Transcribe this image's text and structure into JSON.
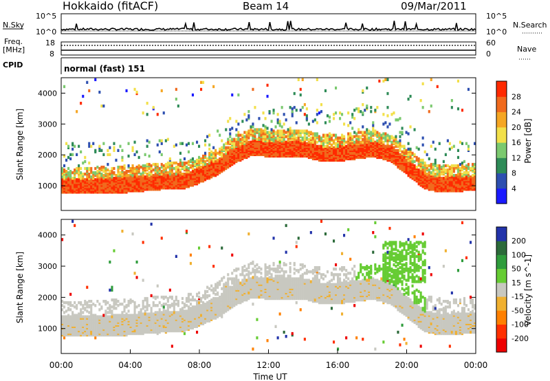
{
  "header": {
    "title": "Hokkaido (fitACF)",
    "beam": "Beam 14",
    "date": "09/Mar/2011"
  },
  "strips": {
    "nsky_label": "N.Sky",
    "nsky_hi": "10^5",
    "nsky_lo": "10^0",
    "nsearch_label": "N.Search",
    "nsearch_hi": "10^5",
    "nsearch_lo": "10^0",
    "freq_label": "Freq.",
    "freq_unit": "[MHz]",
    "freq_hi": "18",
    "freq_lo": "8",
    "nave_label": "Nave",
    "nave_hi": "60",
    "nave_lo": "0",
    "cpid_label": "CPID",
    "cpid_value": "normal (fast) 151"
  },
  "chart_data": [
    {
      "type": "heatmap",
      "title": "Power",
      "ylabel": "Slant Range [km]",
      "xlabel": "Time UT",
      "x_ticks": [
        "00:00",
        "04:00",
        "08:00",
        "12:00",
        "16:00",
        "20:00",
        "00:00"
      ],
      "xlim_hours": [
        0,
        24
      ],
      "ylim": [
        200,
        4500
      ],
      "y_ticks": [
        1000,
        2000,
        3000,
        4000
      ],
      "colorbar": {
        "label": "Power [dB]",
        "ticks": [
          "4",
          "8",
          "12",
          "16",
          "20",
          "24",
          "28"
        ],
        "colors": [
          "#1a1aff",
          "#2d4fb0",
          "#2e8b57",
          "#7bc96f",
          "#f2e04a",
          "#f5a623",
          "#f06a1d",
          "#ff2a00"
        ]
      },
      "main_echo_band_km": [
        [
          0,
          1000
        ],
        [
          2,
          1000
        ],
        [
          4,
          1050
        ],
        [
          6,
          1150
        ],
        [
          7,
          1150
        ],
        [
          8,
          1350
        ],
        [
          9,
          1600
        ],
        [
          10,
          2000
        ],
        [
          11,
          2250
        ],
        [
          12,
          2200
        ],
        [
          14,
          2200
        ],
        [
          15,
          2050
        ],
        [
          16,
          2050
        ],
        [
          18,
          2200
        ],
        [
          19,
          2050
        ],
        [
          20,
          1600
        ],
        [
          21,
          1150
        ],
        [
          22,
          1050
        ],
        [
          23.5,
          1100
        ]
      ]
    },
    {
      "type": "heatmap",
      "title": "Velocity",
      "ylabel": "Slant Range [km]",
      "xlabel": "Time UT",
      "x_ticks": [
        "00:00",
        "04:00",
        "08:00",
        "12:00",
        "16:00",
        "20:00",
        "00:00"
      ],
      "xlim_hours": [
        0,
        24
      ],
      "ylim": [
        200,
        4500
      ],
      "y_ticks": [
        1000,
        2000,
        3000,
        4000
      ],
      "colorbar": {
        "label": "Velocity [m s^-1]",
        "ticks": [
          "200",
          "100",
          "50",
          "15",
          "-15",
          "-50",
          "-100",
          "-200"
        ],
        "colors": [
          "#2233aa",
          "#2c6a3a",
          "#2f9c3c",
          "#66cc33",
          "#c8c8c0",
          "#f0b030",
          "#ff8000",
          "#ff3000",
          "#ee0000"
        ]
      }
    }
  ],
  "colors": {
    "axis": "#000000",
    "ground_scatter": "#c8c8c0",
    "background": "#ffffff"
  }
}
